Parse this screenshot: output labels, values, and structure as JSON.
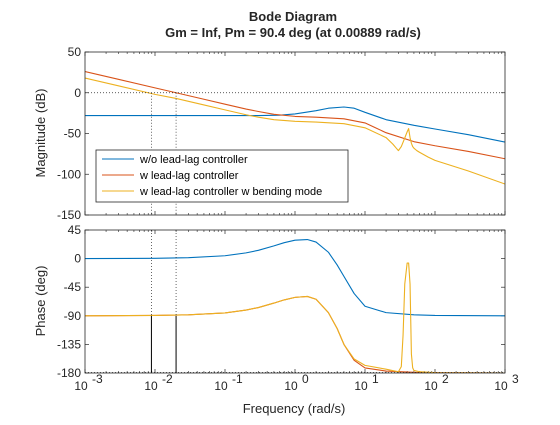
{
  "chart_data": {
    "type": "line",
    "title": "Bode Diagram",
    "subtitle": "Gm = Inf,  Pm = 90.4 deg (at 0.00889 rad/s)",
    "xlabel": "Frequency  (rad/s)",
    "xscale": "log",
    "xlim": [
      0.001,
      1000
    ],
    "x_ticks": [
      {
        "value": 0.001,
        "base": "10",
        "exp": "-3"
      },
      {
        "value": 0.01,
        "base": "10",
        "exp": "-2"
      },
      {
        "value": 0.1,
        "base": "10",
        "exp": "-1"
      },
      {
        "value": 1,
        "base": "10",
        "exp": "0"
      },
      {
        "value": 10,
        "base": "10",
        "exp": "1"
      },
      {
        "value": 100,
        "base": "10",
        "exp": "2"
      },
      {
        "value": 1000,
        "base": "10",
        "exp": "3"
      }
    ],
    "grid": false,
    "legend_position": "bottom-left of magnitude axes",
    "crossover_markers": [
      0.00889,
      0.02
    ],
    "colors": {
      "blue": "#0072BD",
      "red": "#D95319",
      "yellow": "#EDB120"
    },
    "magnitude": {
      "ylabel": "Magnitude (dB)",
      "ylim": [
        -150,
        50
      ],
      "yticks": [
        50,
        0,
        -50,
        -100,
        -150
      ],
      "series": [
        {
          "name": "w/o lead-lag controller",
          "color": "#0072BD",
          "x": [
            0.001,
            0.01,
            0.1,
            0.3,
            0.6,
            1,
            2,
            3,
            5,
            7,
            10,
            20,
            50,
            100,
            300,
            1000
          ],
          "y": [
            -28,
            -28,
            -28,
            -28,
            -27.5,
            -26,
            -22,
            -19,
            -17.5,
            -19,
            -24,
            -33,
            -40,
            -44.5,
            -51.5,
            -60.5
          ]
        },
        {
          "name": "w lead-lag controller",
          "color": "#D95319",
          "x": [
            0.001,
            0.003,
            0.01,
            0.02,
            0.05,
            0.1,
            0.2,
            0.3,
            0.5,
            1,
            2,
            5,
            10,
            20,
            50,
            100,
            300,
            1000
          ],
          "y": [
            26,
            16.5,
            6,
            0,
            -8,
            -14,
            -20,
            -23,
            -26.5,
            -29,
            -30,
            -32,
            -37,
            -49,
            -60,
            -65,
            -72,
            -81
          ]
        },
        {
          "name": "w lead-lag controller w bending mode",
          "color": "#EDB120",
          "x": [
            0.001,
            0.003,
            0.01,
            0.02,
            0.05,
            0.1,
            0.2,
            0.3,
            0.5,
            1,
            2,
            5,
            10,
            20,
            25,
            28,
            30,
            33,
            36,
            40,
            42,
            44,
            46,
            48,
            50,
            55,
            60,
            80,
            100,
            300,
            1000
          ],
          "y": [
            18,
            8.5,
            -2,
            -7,
            -15,
            -21,
            -27,
            -30,
            -33,
            -35,
            -36,
            -38,
            -43,
            -55,
            -63,
            -68,
            -71,
            -66,
            -58,
            -48,
            -44,
            -55,
            -62,
            -66,
            -68,
            -71,
            -73,
            -79,
            -83,
            -96,
            -112
          ]
        }
      ]
    },
    "phase": {
      "ylabel": "Phase (deg)",
      "ylim": [
        -180,
        45
      ],
      "yticks": [
        45,
        0,
        -45,
        -90,
        -135,
        -180
      ],
      "series": [
        {
          "name": "w/o lead-lag controller",
          "color": "#0072BD",
          "x": [
            0.001,
            0.01,
            0.03,
            0.1,
            0.2,
            0.3,
            0.5,
            0.7,
            1,
            1.5,
            2,
            3,
            4,
            5,
            7,
            10,
            20,
            50,
            100,
            1000
          ],
          "y": [
            0,
            0.5,
            1.5,
            4.5,
            9,
            13,
            20,
            25,
            29,
            30,
            26,
            10,
            -10,
            -28,
            -55,
            -75,
            -85,
            -88.5,
            -89.5,
            -90
          ]
        },
        {
          "name": "w lead-lag controller",
          "color": "#D95319",
          "x": [
            0.001,
            0.01,
            0.03,
            0.1,
            0.2,
            0.3,
            0.5,
            0.7,
            1,
            1.5,
            2,
            3,
            4,
            5,
            7,
            10,
            20,
            50,
            100,
            1000
          ],
          "y": [
            -90,
            -89.5,
            -88.5,
            -85.5,
            -81,
            -77,
            -70,
            -65,
            -61,
            -59.5,
            -64,
            -85,
            -110,
            -135,
            -160,
            -172,
            -177,
            -179,
            -179.5,
            -180
          ]
        },
        {
          "name": "w lead-lag controller w bending mode",
          "color": "#EDB120",
          "x": [
            0.001,
            0.01,
            0.03,
            0.1,
            0.2,
            0.3,
            0.5,
            0.7,
            1,
            1.5,
            2,
            3,
            4,
            5,
            7,
            10,
            20,
            30,
            33,
            35,
            37,
            40,
            42,
            44,
            46,
            48,
            50,
            60,
            100,
            1000
          ],
          "y": [
            -90,
            -89.5,
            -88.5,
            -85.5,
            -81,
            -77,
            -70,
            -65,
            -61,
            -59.5,
            -64,
            -85,
            -110,
            -135,
            -158,
            -168,
            -174,
            -178,
            -170,
            -120,
            -40,
            -7,
            -7,
            -40,
            -150,
            -172,
            -176,
            -178,
            -179.5,
            -180
          ]
        }
      ]
    }
  }
}
